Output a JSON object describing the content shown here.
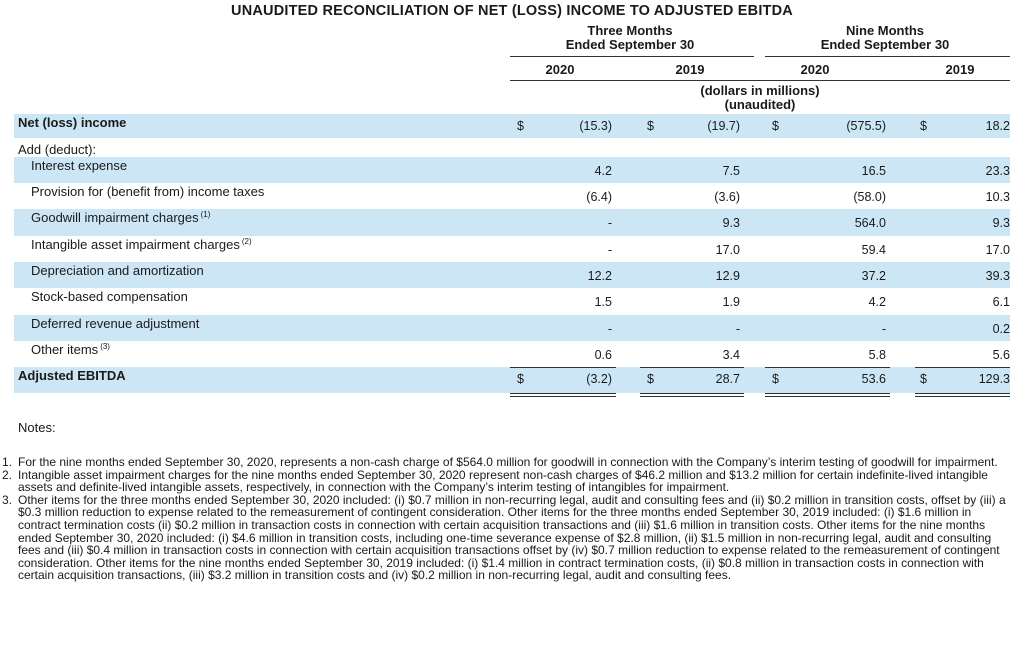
{
  "title": "UNAUDITED RECONCILIATION OF NET (LOSS) INCOME TO ADJUSTED EBITDA",
  "header": {
    "three_months": [
      "Three Months",
      "Ended September 30"
    ],
    "nine_months": [
      "Nine Months",
      "Ended September 30"
    ],
    "years": [
      "2020",
      "2019",
      "2020",
      "2019"
    ],
    "units": [
      "(dollars in millions)",
      "(unaudited)"
    ]
  },
  "rows": [
    {
      "label": "Net (loss) income",
      "sup": "",
      "bold": true,
      "shaded": true,
      "dollar": true,
      "values": [
        "(15.3)",
        "(19.7)",
        "(575.5)",
        "18.2"
      ]
    },
    {
      "label": "Add (deduct):",
      "sup": "",
      "bold": false,
      "shaded": false,
      "dollar": false,
      "values": []
    },
    {
      "label": "Interest expense",
      "sup": "",
      "bold": false,
      "shaded": true,
      "dollar": false,
      "indent": true,
      "values": [
        "4.2",
        "7.5",
        "16.5",
        "23.3"
      ]
    },
    {
      "label": "Provision for (benefit from) income taxes",
      "sup": "",
      "bold": false,
      "shaded": false,
      "dollar": false,
      "indent": true,
      "values": [
        "(6.4)",
        "(3.6)",
        "(58.0)",
        "10.3"
      ]
    },
    {
      "label": "Goodwill impairment charges",
      "sup": "(1)",
      "bold": false,
      "shaded": true,
      "dollar": false,
      "indent": true,
      "values": [
        "-",
        "9.3",
        "564.0",
        "9.3"
      ]
    },
    {
      "label": "Intangible asset impairment charges",
      "sup": "(2)",
      "bold": false,
      "shaded": false,
      "dollar": false,
      "indent": true,
      "values": [
        "-",
        "17.0",
        "59.4",
        "17.0"
      ]
    },
    {
      "label": "Depreciation and amortization",
      "sup": "",
      "bold": false,
      "shaded": true,
      "dollar": false,
      "indent": true,
      "values": [
        "12.2",
        "12.9",
        "37.2",
        "39.3"
      ]
    },
    {
      "label": "Stock-based compensation",
      "sup": "",
      "bold": false,
      "shaded": false,
      "dollar": false,
      "indent": true,
      "values": [
        "1.5",
        "1.9",
        "4.2",
        "6.1"
      ]
    },
    {
      "label": "Deferred revenue adjustment",
      "sup": "",
      "bold": false,
      "shaded": true,
      "dollar": false,
      "indent": true,
      "values": [
        "-",
        "-",
        "-",
        "0.2"
      ]
    },
    {
      "label": "Other items",
      "sup": "(3)",
      "bold": false,
      "shaded": false,
      "dollar": false,
      "indent": true,
      "values": [
        "0.6",
        "3.4",
        "5.8",
        "5.6"
      ]
    },
    {
      "label": "Adjusted EBITDA",
      "sup": "",
      "bold": true,
      "shaded": true,
      "dollar": true,
      "values": [
        "(3.2)",
        "28.7",
        "53.6",
        "129.3"
      ]
    }
  ],
  "dollar_sign": "$",
  "notes_title": "Notes:",
  "notes": [
    {
      "num": "1.",
      "text": "For the nine months ended September 30, 2020, represents a non-cash charge of $564.0 million for goodwill in connection with the Company’s interim testing of goodwill for impairment."
    },
    {
      "num": "2.",
      "text": "Intangible asset impairment charges for the nine months ended September 30, 2020 represent non-cash charges of $46.2 million and $13.2 million for certain indefinite-lived intangible assets and definite-lived intangible assets, respectively, in connection with the Company’s interim testing of intangibles for impairment."
    },
    {
      "num": "3.",
      "text": "Other items for the three months ended September 30, 2020 included: (i) $0.7 million in non-recurring legal, audit and consulting fees and (ii) $0.2 million in transition costs, offset by (iii) a $0.3 million reduction to expense related to the remeasurement of contingent consideration. Other items for the three months ended September 30, 2019 included: (i) $1.6 million in contract termination costs (ii) $0.2 million in transaction costs in connection with certain acquisition transactions and (iii) $1.6 million in transition costs. Other items for the nine months ended September 30, 2020 included: (i) $4.6 million in transition costs, including one-time severance expense of $2.8 million, (ii) $1.5 million in non-recurring legal, audit and consulting fees and (iii) $0.4 million in transaction costs in connection with certain acquisition transactions offset by (iv) $0.7 million reduction to expense related to the remeasurement of contingent consideration. Other items for the nine months ended September 30, 2019 included: (i) $1.4 million in contract termination costs, (ii) $0.8 million in transaction costs in connection with certain acquisition transactions, (iii) $3.2 million in transition costs and (iv) $0.2 million in non-recurring legal, audit and consulting fees."
    }
  ]
}
